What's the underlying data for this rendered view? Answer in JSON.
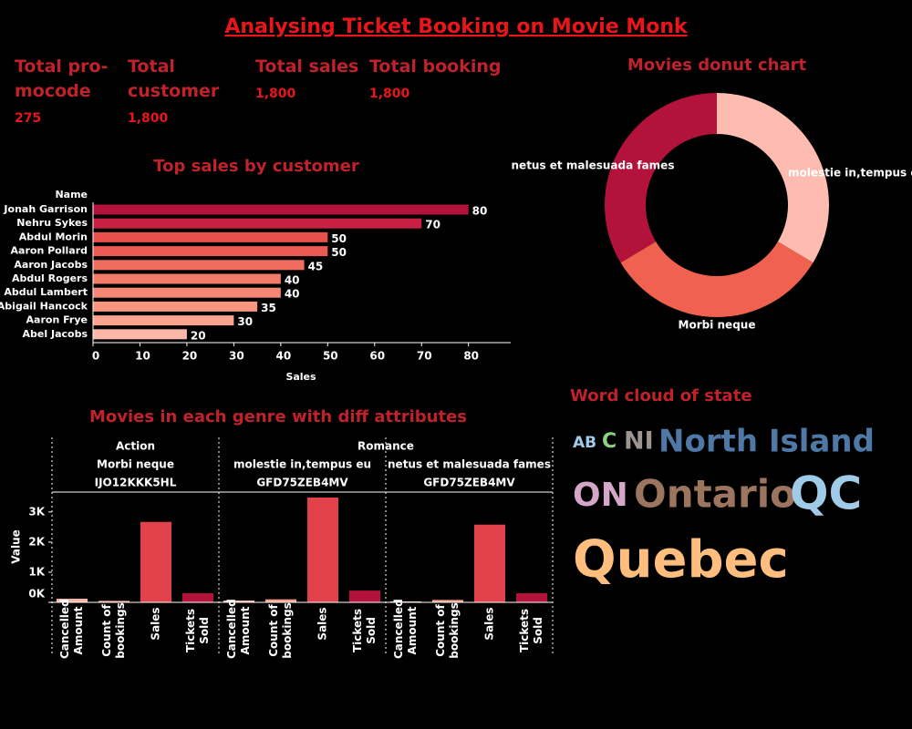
{
  "title": "Analysing Ticket Booking on Movie Monk",
  "kpis": [
    {
      "label": "Total pro-mocode",
      "value": "275"
    },
    {
      "label": "Total customer",
      "value": "1,800"
    },
    {
      "label": "Total sales",
      "value": "1,800"
    },
    {
      "label": "Total booking",
      "value": "1,800"
    }
  ],
  "chart_data": [
    {
      "type": "bar",
      "orientation": "horizontal",
      "title": "Top sales by customer",
      "y_label": "Name",
      "x_label": "Sales",
      "categories": [
        "Jonah Garrison",
        "Nehru Sykes",
        "Abdul Morin",
        "Aaron Pollard",
        "Aaron Jacobs",
        "Abdul Rogers",
        "Abdul Lambert",
        "Abigail Hancock",
        "Aaron Frye",
        "Abel Jacobs"
      ],
      "values": [
        80,
        70,
        50,
        50,
        45,
        40,
        40,
        35,
        30,
        20
      ],
      "colors": [
        "#b3123a",
        "#c91f42",
        "#e8504e",
        "#eb5a52",
        "#ef6c5e",
        "#f27c69",
        "#f48674",
        "#f7957f",
        "#f9a38e",
        "#fbb8a8"
      ],
      "xlim": [
        0,
        89
      ],
      "xticks": [
        0,
        10,
        20,
        30,
        40,
        50,
        60,
        70,
        80
      ]
    },
    {
      "type": "pie",
      "donut": true,
      "title": "Movies donut chart",
      "categories": [
        "molestie in,tempus eu",
        "Morbi neque",
        "netus et malesuada fames"
      ],
      "values": [
        33.6,
        32.8,
        33.6
      ],
      "colors": [
        "#fdbcaf",
        "#f0624f",
        "#b3123a"
      ]
    },
    {
      "type": "panel_bar",
      "title": "Movies in each genre with diff attributes",
      "y_label": "Value",
      "categories": [
        "Cancelled Amount",
        "Count of bookings",
        "Sales",
        "Tickets Sold"
      ],
      "colors": [
        "#fbb4a4",
        "#f7a08c",
        "#e0414a",
        "#b3123a"
      ],
      "ylim": [
        0,
        3600
      ],
      "yticks": [
        {
          "value": 0,
          "label": "0K"
        },
        {
          "value": 1000,
          "label": "1K"
        },
        {
          "value": 2000,
          "label": "2K"
        },
        {
          "value": 3000,
          "label": "3K"
        }
      ],
      "genres": [
        {
          "name": "Action",
          "panels": [
            {
              "movie": "Morbi neque",
              "id": "IJO12KKK5HL",
              "values": [
                120,
                50,
                2670,
                300
              ]
            }
          ]
        },
        {
          "name": "Romance",
          "panels": [
            {
              "movie": "molestie in,tempus eu",
              "id": "GFD75ZEB4MV",
              "values": [
                60,
                100,
                3480,
                390
              ]
            },
            {
              "movie": "netus et malesuada fames",
              "id": "GFD75ZEB4MV",
              "values": [
                30,
                80,
                2580,
                300
              ]
            }
          ]
        }
      ]
    }
  ],
  "word_cloud": {
    "title": "Word cloud of state",
    "words": [
      "AB",
      "C",
      "NI",
      "North Island",
      "ON",
      "Ontario",
      "QC",
      "Quebec"
    ]
  }
}
